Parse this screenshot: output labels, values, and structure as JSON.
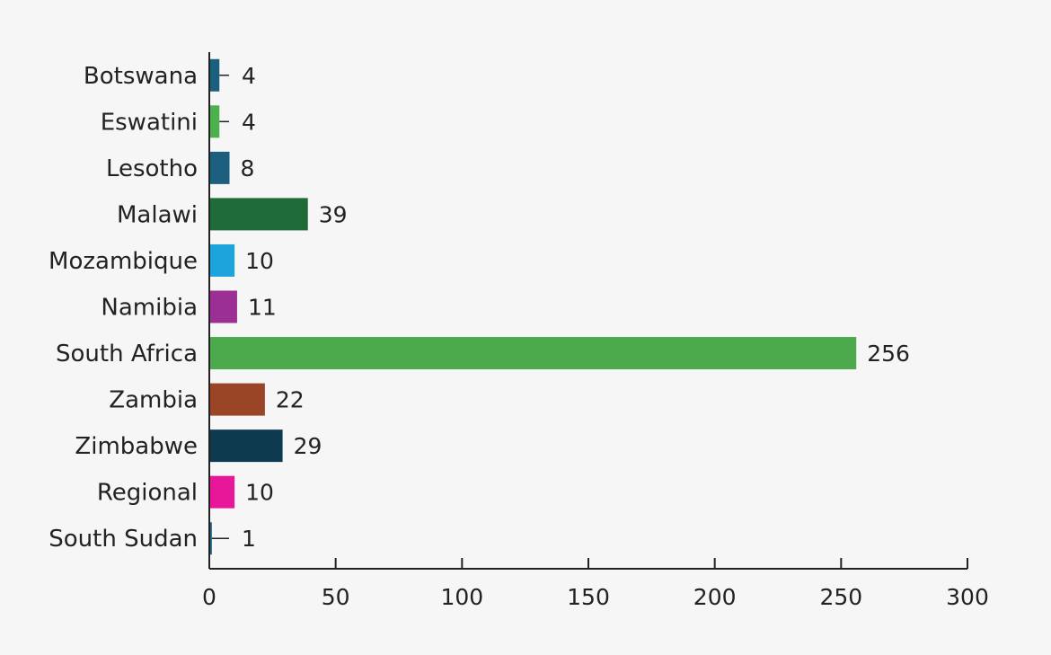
{
  "chart_data": {
    "type": "bar",
    "orientation": "horizontal",
    "title": "",
    "xlabel": "",
    "ylabel": "",
    "categories": [
      "Botswana",
      "Eswatini",
      "Lesotho",
      "Malawi",
      "Mozambique",
      "Namibia",
      "South Africa",
      "Zambia",
      "Zimbabwe",
      "Regional",
      "South Sudan"
    ],
    "values": [
      4,
      4,
      8,
      39,
      10,
      11,
      256,
      22,
      29,
      10,
      1
    ],
    "value_labels": [
      "4",
      "4",
      "8",
      "39",
      "10",
      "11",
      "256",
      "22",
      "29",
      "10",
      "1"
    ],
    "colors": [
      "#1b5e7e",
      "#4bb04d",
      "#1b5e7e",
      "#1e6b38",
      "#1da4dc",
      "#9b2f94",
      "#4caa4c",
      "#9a4526",
      "#0d3a4e",
      "#e8179a",
      "#1b5e7e"
    ],
    "xlim": [
      0,
      300
    ],
    "xticks": [
      "0",
      "50",
      "100",
      "150",
      "200",
      "250",
      "300"
    ],
    "grid": false,
    "legend": "none"
  }
}
